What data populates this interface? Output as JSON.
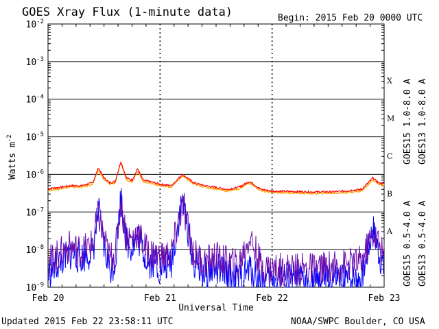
{
  "header": {
    "title": "GOES Xray Flux (1-minute data)",
    "begin": "Begin:  2015 Feb 20 0000 UTC"
  },
  "footer": {
    "updated": "Updated 2015 Feb 22 23:58:11 UTC",
    "credit": "NOAA/SWPC Boulder, CO USA"
  },
  "chart_data": {
    "type": "line",
    "ylabel_base": "Watts m",
    "ylabel_exp": "-2",
    "xlabel": "Universal Time",
    "y_scale": "log",
    "ylim": [
      1e-09,
      0.01
    ],
    "y_ticks": [
      {
        "mantissa": "10",
        "exp": "-2",
        "value": 0.01
      },
      {
        "mantissa": "10",
        "exp": "-3",
        "value": 0.001
      },
      {
        "mantissa": "10",
        "exp": "-4",
        "value": 0.0001
      },
      {
        "mantissa": "10",
        "exp": "-5",
        "value": 1e-05
      },
      {
        "mantissa": "10",
        "exp": "-6",
        "value": 1e-06
      },
      {
        "mantissa": "10",
        "exp": "-7",
        "value": 1e-07
      },
      {
        "mantissa": "10",
        "exp": "-8",
        "value": 1e-08
      },
      {
        "mantissa": "10",
        "exp": "-9",
        "value": 1e-09
      }
    ],
    "x_ticks": [
      "Feb 20",
      "Feb 21",
      "Feb 22",
      "Feb 23"
    ],
    "flare_classes": [
      {
        "label": "X",
        "value": 0.0001
      },
      {
        "label": "M",
        "value": 1e-05
      },
      {
        "label": "C",
        "value": 1e-06
      },
      {
        "label": "B",
        "value": 1e-07
      },
      {
        "label": "A",
        "value": 1e-08
      }
    ],
    "legend_right_outer": [
      {
        "name": "GOES15 1.0-8.0 A",
        "color": "#ff0000"
      },
      {
        "name": "GOES15 0.5-4.0 A",
        "color": "#0000ff"
      }
    ],
    "legend_right_inner": [
      {
        "name": "GOES13 1.0-8.0 A",
        "color": "#ffa500"
      },
      {
        "name": "GOES13 0.5-4.0 A",
        "color": "#6a0dad"
      }
    ],
    "series": [
      {
        "name": "GOES15 1.0-8.0 A",
        "color": "#ff0000",
        "x": [
          0,
          0.1,
          0.2,
          0.3,
          0.4,
          0.45,
          0.5,
          0.55,
          0.6,
          0.65,
          0.7,
          0.75,
          0.8,
          0.85,
          0.9,
          0.95,
          1.0,
          1.1,
          1.2,
          1.3,
          1.4,
          1.5,
          1.6,
          1.7,
          1.8,
          1.9,
          2.0,
          2.2,
          2.4,
          2.6,
          2.8,
          2.9,
          2.95,
          3.0
        ],
        "y": [
          4.2e-07,
          4.5e-07,
          5e-07,
          5e-07,
          6e-07,
          1.5e-06,
          8e-07,
          6e-07,
          6.5e-07,
          2.2e-06,
          8e-07,
          7e-07,
          1.4e-06,
          7e-07,
          6.5e-07,
          6e-07,
          5.5e-07,
          5e-07,
          1e-06,
          6e-07,
          5e-07,
          4.5e-07,
          4e-07,
          4.5e-07,
          6.5e-07,
          4e-07,
          3.6e-07,
          3.5e-07,
          3.4e-07,
          3.5e-07,
          4e-07,
          8e-07,
          6e-07,
          5.5e-07
        ]
      },
      {
        "name": "GOES13 1.0-8.0 A",
        "color": "#ffa500",
        "x": [
          0,
          0.1,
          0.2,
          0.3,
          0.4,
          0.45,
          0.5,
          0.55,
          0.6,
          0.65,
          0.7,
          0.75,
          0.8,
          0.85,
          0.9,
          0.95,
          1.0,
          1.1,
          1.2,
          1.3,
          1.4,
          1.5,
          1.6,
          1.7,
          1.8,
          1.9,
          2.0,
          2.2,
          2.4,
          2.6,
          2.8,
          2.9,
          2.95,
          3.0
        ],
        "y": [
          3.8e-07,
          4.1e-07,
          4.6e-07,
          4.6e-07,
          5.5e-07,
          1.3e-06,
          7.2e-07,
          5.5e-07,
          6e-07,
          2e-06,
          7.2e-07,
          6.4e-07,
          1.2e-06,
          6.4e-07,
          6e-07,
          5.5e-07,
          5e-07,
          4.6e-07,
          9e-07,
          5.5e-07,
          4.6e-07,
          4.1e-07,
          3.6e-07,
          4.1e-07,
          6e-07,
          3.6e-07,
          3.3e-07,
          3.2e-07,
          3.1e-07,
          3.2e-07,
          3.6e-07,
          7.2e-07,
          5.5e-07,
          5e-07
        ]
      },
      {
        "name": "GOES15 0.5-4.0 A",
        "color": "#0000ff",
        "x": [
          0,
          0.1,
          0.2,
          0.3,
          0.4,
          0.45,
          0.5,
          0.55,
          0.6,
          0.65,
          0.7,
          0.75,
          0.8,
          0.85,
          0.9,
          0.95,
          1.0,
          1.1,
          1.2,
          1.3,
          1.4,
          1.5,
          1.6,
          1.7,
          1.8,
          1.9,
          2.0,
          2.2,
          2.4,
          2.6,
          2.8,
          2.9,
          2.95,
          3.0
        ],
        "y": [
          1.5e-09,
          3e-09,
          5e-09,
          4e-09,
          6e-09,
          7e-08,
          8e-09,
          2e-09,
          3e-09,
          1.8e-07,
          1e-08,
          8e-09,
          1.5e-08,
          6e-09,
          3e-09,
          3e-09,
          2e-09,
          3e-09,
          1.5e-07,
          3e-09,
          1.5e-09,
          2e-09,
          1.5e-09,
          1e-09,
          2e-09,
          1e-09,
          1e-09,
          1e-09,
          1e-09,
          1e-09,
          1.2e-09,
          2.5e-08,
          6e-09,
          2e-09
        ]
      },
      {
        "name": "GOES13 0.5-4.0 A",
        "color": "#6a0dad",
        "x": [
          0,
          0.1,
          0.2,
          0.3,
          0.4,
          0.45,
          0.5,
          0.55,
          0.6,
          0.65,
          0.7,
          0.75,
          0.8,
          0.85,
          0.9,
          0.95,
          1.0,
          1.1,
          1.2,
          1.3,
          1.4,
          1.5,
          1.6,
          1.7,
          1.8,
          1.9,
          2.0,
          2.2,
          2.4,
          2.6,
          2.8,
          2.9,
          2.95,
          3.0
        ],
        "y": [
          3e-09,
          5e-09,
          8e-09,
          6e-09,
          9e-09,
          6e-08,
          1.2e-08,
          4e-09,
          5e-09,
          1.2e-07,
          1.5e-08,
          1.2e-08,
          2e-08,
          9e-09,
          5e-09,
          5e-09,
          4e-09,
          5e-09,
          1e-07,
          5e-09,
          3e-09,
          4e-09,
          3e-09,
          2.5e-09,
          1.5e-08,
          2.5e-09,
          2e-09,
          2e-09,
          2e-09,
          2.5e-09,
          3e-09,
          1.8e-08,
          1e-08,
          4e-09
        ]
      }
    ]
  }
}
